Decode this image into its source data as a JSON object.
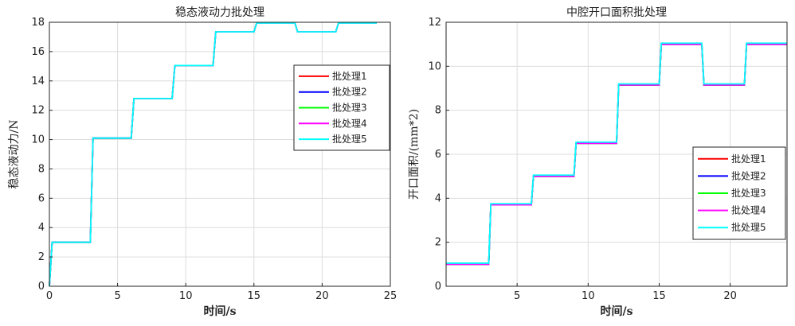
{
  "chart_data": [
    {
      "type": "line",
      "title": "稳态液动力批处理",
      "xlabel": "时间/s",
      "ylabel": "稳态液动力/N",
      "xlim": [
        0,
        25
      ],
      "ylim": [
        0,
        18
      ],
      "xticks": [
        0,
        5,
        10,
        15,
        20,
        25
      ],
      "yticks": [
        0,
        2,
        4,
        6,
        8,
        10,
        12,
        14,
        16,
        18
      ],
      "grid": true,
      "legend_position": "right-middle",
      "series": [
        {
          "name": "批处理1",
          "color": "#ff0000",
          "x": [
            0,
            0.2,
            3,
            3.2,
            6,
            6.2,
            9,
            9.2,
            12,
            12.2,
            15,
            15.2,
            18,
            18.2,
            21,
            21.2,
            24
          ],
          "y": [
            0,
            3,
            3,
            10.1,
            10.1,
            12.8,
            12.8,
            15.05,
            15.05,
            17.35,
            17.35,
            17.95,
            17.95,
            17.35,
            17.35,
            17.95,
            17.95
          ]
        },
        {
          "name": "批处理2",
          "color": "#0000ff",
          "x": [
            0,
            0.2,
            3,
            3.2,
            6,
            6.2,
            9,
            9.2,
            12,
            12.2,
            15,
            15.2,
            18,
            18.2,
            21,
            21.2,
            24
          ],
          "y": [
            0,
            3,
            3,
            10.1,
            10.1,
            12.8,
            12.8,
            15.05,
            15.05,
            17.35,
            17.35,
            17.95,
            17.95,
            17.35,
            17.35,
            17.95,
            17.95
          ]
        },
        {
          "name": "批处理3",
          "color": "#00ff00",
          "x": [
            0,
            0.2,
            3,
            3.2,
            6,
            6.2,
            9,
            9.2,
            12,
            12.2,
            15,
            15.2,
            18,
            18.2,
            21,
            21.2,
            24
          ],
          "y": [
            0,
            3,
            3,
            10.1,
            10.1,
            12.8,
            12.8,
            15.05,
            15.05,
            17.35,
            17.35,
            17.95,
            17.95,
            17.35,
            17.35,
            17.95,
            17.95
          ]
        },
        {
          "name": "批处理4",
          "color": "#ff00ff",
          "x": [
            0,
            0.2,
            3,
            3.2,
            6,
            6.2,
            9,
            9.2,
            12,
            12.2,
            15,
            15.2,
            18,
            18.2,
            21,
            21.2,
            24
          ],
          "y": [
            0,
            3,
            3,
            10.1,
            10.1,
            12.8,
            12.8,
            15.05,
            15.05,
            17.35,
            17.35,
            17.95,
            17.95,
            17.35,
            17.35,
            17.95,
            17.95
          ]
        },
        {
          "name": "批处理5",
          "color": "#00ffff",
          "x": [
            0,
            0.2,
            3,
            3.2,
            6,
            6.2,
            9,
            9.2,
            12,
            12.2,
            15,
            15.2,
            18,
            18.2,
            21,
            21.2,
            24
          ],
          "y": [
            0,
            3,
            3,
            10.1,
            10.1,
            12.8,
            12.8,
            15.05,
            15.05,
            17.35,
            17.35,
            17.95,
            17.95,
            17.35,
            17.35,
            17.95,
            17.95
          ]
        }
      ]
    },
    {
      "type": "line",
      "title": "中腔开口面积批处理",
      "xlabel": "时间/s",
      "ylabel": "开口面积/(mm*2)",
      "xlim": [
        0,
        24
      ],
      "ylim": [
        0,
        12
      ],
      "xticks": [
        5,
        10,
        15,
        20
      ],
      "yticks": [
        0,
        2,
        4,
        6,
        8,
        10,
        12
      ],
      "grid": true,
      "legend_position": "bottom-right",
      "series": [
        {
          "name": "批处理1",
          "color": "#ff0000",
          "x": [
            0,
            3,
            3.15,
            6,
            6.15,
            9,
            9.15,
            12,
            12.15,
            15,
            15.15,
            18,
            18.15,
            21,
            21.15,
            24
          ],
          "y": [
            1.0,
            1.0,
            3.7,
            3.7,
            5.0,
            5.0,
            6.5,
            6.5,
            9.15,
            9.15,
            11.0,
            11.0,
            9.15,
            9.15,
            11.0,
            11.0
          ]
        },
        {
          "name": "批处理2",
          "color": "#0000ff",
          "x": [
            0,
            3,
            3.15,
            6,
            6.15,
            9,
            9.15,
            12,
            12.15,
            15,
            15.15,
            18,
            18.15,
            21,
            21.15,
            24
          ],
          "y": [
            1.0,
            1.0,
            3.7,
            3.7,
            5.0,
            5.0,
            6.5,
            6.5,
            9.15,
            9.15,
            11.0,
            11.0,
            9.15,
            9.15,
            11.0,
            11.0
          ]
        },
        {
          "name": "批处理3",
          "color": "#00ff00",
          "x": [
            0,
            3,
            3.15,
            6,
            6.15,
            9,
            9.15,
            12,
            12.15,
            15,
            15.15,
            18,
            18.15,
            21,
            21.15,
            24
          ],
          "y": [
            1.0,
            1.0,
            3.7,
            3.7,
            5.0,
            5.0,
            6.5,
            6.5,
            9.15,
            9.15,
            11.0,
            11.0,
            9.15,
            9.15,
            11.0,
            11.0
          ]
        },
        {
          "name": "批处理4",
          "color": "#ff00ff",
          "x": [
            0,
            3,
            3.15,
            6,
            6.15,
            9,
            9.15,
            12,
            12.15,
            15,
            15.15,
            18,
            18.15,
            21,
            21.15,
            24
          ],
          "y": [
            1.0,
            1.0,
            3.7,
            3.7,
            5.0,
            5.0,
            6.5,
            6.5,
            9.15,
            9.15,
            11.0,
            11.0,
            9.15,
            9.15,
            11.0,
            11.0
          ]
        },
        {
          "name": "批处理5",
          "color": "#00ffff",
          "x": [
            0,
            3,
            3.15,
            6,
            6.15,
            9,
            9.15,
            12,
            12.15,
            15,
            15.15,
            18,
            18.15,
            21,
            21.15,
            24
          ],
          "y": [
            1.05,
            1.05,
            3.75,
            3.75,
            5.05,
            5.05,
            6.55,
            6.55,
            9.2,
            9.2,
            11.05,
            11.05,
            9.2,
            9.2,
            11.05,
            11.05
          ]
        }
      ]
    }
  ]
}
